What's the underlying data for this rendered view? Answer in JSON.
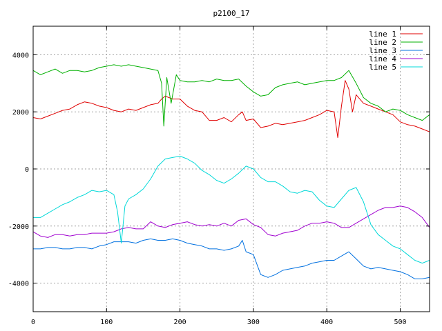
{
  "chart_data": {
    "type": "line",
    "title": "p2100_17",
    "xlabel": "",
    "ylabel": "",
    "xlim": [
      0,
      540
    ],
    "ylim": [
      -5000,
      5000
    ],
    "xticks": [
      0,
      100,
      200,
      300,
      400,
      500
    ],
    "yticks": [
      -4000,
      -2000,
      0,
      2000,
      4000
    ],
    "grid": true,
    "legend_position": "top-right",
    "series": [
      {
        "name": "line 1",
        "color": "#e00000",
        "points": [
          [
            0,
            1800
          ],
          [
            10,
            1750
          ],
          [
            20,
            1850
          ],
          [
            30,
            1950
          ],
          [
            40,
            2050
          ],
          [
            50,
            2100
          ],
          [
            60,
            2250
          ],
          [
            70,
            2350
          ],
          [
            80,
            2300
          ],
          [
            90,
            2200
          ],
          [
            100,
            2150
          ],
          [
            110,
            2050
          ],
          [
            120,
            2000
          ],
          [
            130,
            2100
          ],
          [
            140,
            2050
          ],
          [
            150,
            2150
          ],
          [
            160,
            2250
          ],
          [
            170,
            2300
          ],
          [
            175,
            2450
          ],
          [
            180,
            2550
          ],
          [
            190,
            2450
          ],
          [
            200,
            2450
          ],
          [
            210,
            2200
          ],
          [
            220,
            2050
          ],
          [
            230,
            2000
          ],
          [
            240,
            1700
          ],
          [
            250,
            1700
          ],
          [
            260,
            1800
          ],
          [
            270,
            1650
          ],
          [
            280,
            1900
          ],
          [
            285,
            2000
          ],
          [
            290,
            1700
          ],
          [
            300,
            1750
          ],
          [
            310,
            1450
          ],
          [
            320,
            1500
          ],
          [
            330,
            1600
          ],
          [
            340,
            1550
          ],
          [
            350,
            1600
          ],
          [
            360,
            1650
          ],
          [
            370,
            1700
          ],
          [
            380,
            1800
          ],
          [
            390,
            1900
          ],
          [
            400,
            2050
          ],
          [
            410,
            2000
          ],
          [
            415,
            1100
          ],
          [
            420,
            2200
          ],
          [
            425,
            3100
          ],
          [
            430,
            2800
          ],
          [
            435,
            2000
          ],
          [
            440,
            2600
          ],
          [
            450,
            2300
          ],
          [
            460,
            2200
          ],
          [
            470,
            2100
          ],
          [
            480,
            2000
          ],
          [
            490,
            1900
          ],
          [
            500,
            1650
          ],
          [
            510,
            1550
          ],
          [
            520,
            1500
          ],
          [
            530,
            1400
          ],
          [
            540,
            1300
          ]
        ]
      },
      {
        "name": "line 2",
        "color": "#00b000",
        "points": [
          [
            0,
            3450
          ],
          [
            10,
            3300
          ],
          [
            20,
            3400
          ],
          [
            30,
            3500
          ],
          [
            40,
            3350
          ],
          [
            50,
            3450
          ],
          [
            60,
            3450
          ],
          [
            70,
            3400
          ],
          [
            80,
            3450
          ],
          [
            90,
            3550
          ],
          [
            100,
            3600
          ],
          [
            110,
            3650
          ],
          [
            120,
            3600
          ],
          [
            130,
            3650
          ],
          [
            140,
            3600
          ],
          [
            150,
            3550
          ],
          [
            160,
            3500
          ],
          [
            170,
            3450
          ],
          [
            175,
            3000
          ],
          [
            178,
            1500
          ],
          [
            182,
            3200
          ],
          [
            188,
            2300
          ],
          [
            195,
            3300
          ],
          [
            200,
            3100
          ],
          [
            210,
            3050
          ],
          [
            220,
            3050
          ],
          [
            230,
            3100
          ],
          [
            240,
            3050
          ],
          [
            250,
            3150
          ],
          [
            260,
            3100
          ],
          [
            270,
            3100
          ],
          [
            280,
            3150
          ],
          [
            290,
            2900
          ],
          [
            300,
            2700
          ],
          [
            310,
            2550
          ],
          [
            320,
            2600
          ],
          [
            330,
            2850
          ],
          [
            340,
            2950
          ],
          [
            350,
            3000
          ],
          [
            360,
            3050
          ],
          [
            370,
            2950
          ],
          [
            380,
            3000
          ],
          [
            390,
            3050
          ],
          [
            400,
            3100
          ],
          [
            410,
            3100
          ],
          [
            420,
            3200
          ],
          [
            430,
            3450
          ],
          [
            440,
            3000
          ],
          [
            450,
            2500
          ],
          [
            460,
            2300
          ],
          [
            470,
            2200
          ],
          [
            480,
            2000
          ],
          [
            490,
            2100
          ],
          [
            500,
            2050
          ],
          [
            510,
            1900
          ],
          [
            520,
            1800
          ],
          [
            530,
            1700
          ],
          [
            540,
            1900
          ]
        ]
      },
      {
        "name": "line 3",
        "color": "#0070e0",
        "points": [
          [
            0,
            -2800
          ],
          [
            10,
            -2800
          ],
          [
            20,
            -2750
          ],
          [
            30,
            -2750
          ],
          [
            40,
            -2800
          ],
          [
            50,
            -2800
          ],
          [
            60,
            -2750
          ],
          [
            70,
            -2750
          ],
          [
            80,
            -2800
          ],
          [
            90,
            -2700
          ],
          [
            100,
            -2650
          ],
          [
            110,
            -2550
          ],
          [
            120,
            -2550
          ],
          [
            130,
            -2550
          ],
          [
            140,
            -2600
          ],
          [
            150,
            -2500
          ],
          [
            160,
            -2450
          ],
          [
            170,
            -2500
          ],
          [
            180,
            -2500
          ],
          [
            190,
            -2450
          ],
          [
            200,
            -2500
          ],
          [
            210,
            -2600
          ],
          [
            220,
            -2650
          ],
          [
            230,
            -2700
          ],
          [
            240,
            -2800
          ],
          [
            250,
            -2800
          ],
          [
            260,
            -2850
          ],
          [
            270,
            -2800
          ],
          [
            280,
            -2700
          ],
          [
            285,
            -2500
          ],
          [
            290,
            -2900
          ],
          [
            300,
            -3000
          ],
          [
            310,
            -3700
          ],
          [
            320,
            -3800
          ],
          [
            330,
            -3700
          ],
          [
            340,
            -3550
          ],
          [
            350,
            -3500
          ],
          [
            360,
            -3450
          ],
          [
            370,
            -3400
          ],
          [
            380,
            -3300
          ],
          [
            390,
            -3250
          ],
          [
            400,
            -3200
          ],
          [
            410,
            -3200
          ],
          [
            420,
            -3050
          ],
          [
            430,
            -2900
          ],
          [
            440,
            -3150
          ],
          [
            450,
            -3400
          ],
          [
            460,
            -3500
          ],
          [
            470,
            -3450
          ],
          [
            480,
            -3500
          ],
          [
            490,
            -3550
          ],
          [
            500,
            -3600
          ],
          [
            510,
            -3700
          ],
          [
            520,
            -3850
          ],
          [
            530,
            -3850
          ],
          [
            540,
            -3800
          ]
        ]
      },
      {
        "name": "line 4",
        "color": "#a000d0",
        "points": [
          [
            0,
            -2200
          ],
          [
            10,
            -2350
          ],
          [
            20,
            -2400
          ],
          [
            30,
            -2300
          ],
          [
            40,
            -2300
          ],
          [
            50,
            -2350
          ],
          [
            60,
            -2300
          ],
          [
            70,
            -2300
          ],
          [
            80,
            -2250
          ],
          [
            90,
            -2250
          ],
          [
            100,
            -2250
          ],
          [
            110,
            -2200
          ],
          [
            120,
            -2100
          ],
          [
            130,
            -2050
          ],
          [
            140,
            -2100
          ],
          [
            150,
            -2100
          ],
          [
            160,
            -1850
          ],
          [
            170,
            -2000
          ],
          [
            180,
            -2050
          ],
          [
            190,
            -1950
          ],
          [
            200,
            -1900
          ],
          [
            210,
            -1850
          ],
          [
            220,
            -1950
          ],
          [
            230,
            -2000
          ],
          [
            240,
            -1950
          ],
          [
            250,
            -2000
          ],
          [
            260,
            -1900
          ],
          [
            270,
            -2000
          ],
          [
            280,
            -1800
          ],
          [
            290,
            -1750
          ],
          [
            300,
            -1950
          ],
          [
            310,
            -2050
          ],
          [
            320,
            -2300
          ],
          [
            330,
            -2350
          ],
          [
            340,
            -2250
          ],
          [
            350,
            -2200
          ],
          [
            360,
            -2150
          ],
          [
            370,
            -2000
          ],
          [
            380,
            -1900
          ],
          [
            390,
            -1900
          ],
          [
            400,
            -1850
          ],
          [
            410,
            -1900
          ],
          [
            420,
            -2050
          ],
          [
            430,
            -2050
          ],
          [
            440,
            -1900
          ],
          [
            450,
            -1750
          ],
          [
            460,
            -1600
          ],
          [
            470,
            -1450
          ],
          [
            480,
            -1350
          ],
          [
            490,
            -1350
          ],
          [
            500,
            -1300
          ],
          [
            510,
            -1350
          ],
          [
            520,
            -1500
          ],
          [
            530,
            -1700
          ],
          [
            540,
            -2050
          ]
        ]
      },
      {
        "name": "line 5",
        "color": "#00d8d8",
        "points": [
          [
            0,
            -1700
          ],
          [
            10,
            -1700
          ],
          [
            20,
            -1550
          ],
          [
            30,
            -1400
          ],
          [
            40,
            -1250
          ],
          [
            50,
            -1150
          ],
          [
            60,
            -1000
          ],
          [
            70,
            -900
          ],
          [
            80,
            -750
          ],
          [
            90,
            -800
          ],
          [
            100,
            -750
          ],
          [
            110,
            -900
          ],
          [
            115,
            -1500
          ],
          [
            120,
            -2600
          ],
          [
            125,
            -1300
          ],
          [
            130,
            -1050
          ],
          [
            140,
            -900
          ],
          [
            150,
            -700
          ],
          [
            160,
            -350
          ],
          [
            170,
            100
          ],
          [
            180,
            350
          ],
          [
            190,
            400
          ],
          [
            200,
            450
          ],
          [
            210,
            350
          ],
          [
            220,
            200
          ],
          [
            230,
            -50
          ],
          [
            240,
            -200
          ],
          [
            250,
            -400
          ],
          [
            260,
            -500
          ],
          [
            270,
            -350
          ],
          [
            280,
            -150
          ],
          [
            290,
            100
          ],
          [
            300,
            0
          ],
          [
            310,
            -300
          ],
          [
            320,
            -450
          ],
          [
            330,
            -450
          ],
          [
            340,
            -600
          ],
          [
            350,
            -800
          ],
          [
            360,
            -850
          ],
          [
            370,
            -750
          ],
          [
            380,
            -800
          ],
          [
            390,
            -1100
          ],
          [
            400,
            -1300
          ],
          [
            410,
            -1350
          ],
          [
            420,
            -1050
          ],
          [
            430,
            -750
          ],
          [
            440,
            -650
          ],
          [
            450,
            -1150
          ],
          [
            460,
            -1950
          ],
          [
            470,
            -2300
          ],
          [
            480,
            -2500
          ],
          [
            490,
            -2700
          ],
          [
            500,
            -2800
          ],
          [
            510,
            -3000
          ],
          [
            520,
            -3200
          ],
          [
            530,
            -3300
          ],
          [
            540,
            -3200
          ]
        ]
      }
    ]
  }
}
